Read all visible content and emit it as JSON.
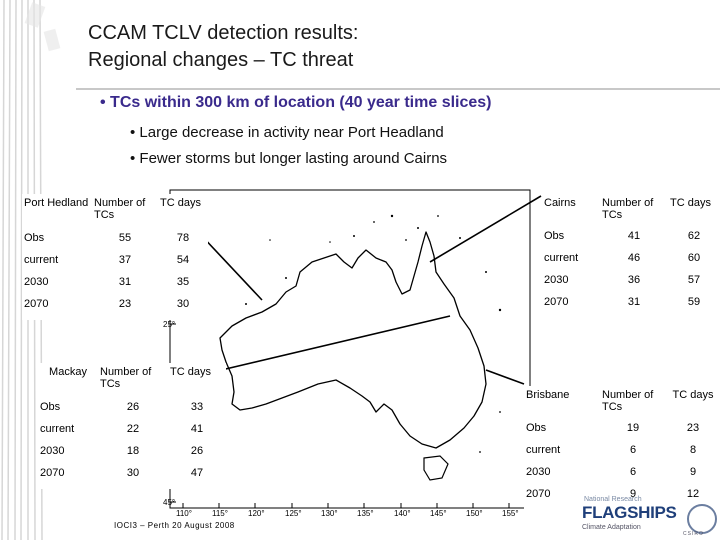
{
  "title": {
    "line1": "CCAM TCLV detection results:",
    "line2": "Regional changes – TC threat"
  },
  "bullets": {
    "main": "TCs within 300 km of location (40 year time slices)",
    "sub": [
      "Large decrease in activity near Port Headland",
      "Fewer storms but longer lasting around Cairns"
    ]
  },
  "map": {
    "lat_labels": [
      "25°",
      "45°"
    ],
    "lon_labels": [
      "110°",
      "115°",
      "120°",
      "125°",
      "130°",
      "135°",
      "140°",
      "145°",
      "150°",
      "155°"
    ]
  },
  "tables": {
    "port_hedland": {
      "headers": [
        "Port Hedland",
        "Number of TCs",
        "TC days"
      ],
      "rows": [
        [
          "Obs",
          "55",
          "78"
        ],
        [
          "current",
          "37",
          "54"
        ],
        [
          "2030",
          "31",
          "35"
        ],
        [
          "2070",
          "23",
          "30"
        ]
      ]
    },
    "mackay": {
      "headers": [
        "Mackay",
        "Number of TCs",
        "TC days"
      ],
      "rows": [
        [
          "Obs",
          "26",
          "33"
        ],
        [
          "current",
          "22",
          "41"
        ],
        [
          "2030",
          "18",
          "26"
        ],
        [
          "2070",
          "30",
          "47"
        ]
      ]
    },
    "cairns": {
      "headers": [
        "Cairns",
        "Number of TCs",
        "TC days"
      ],
      "rows": [
        [
          "Obs",
          "41",
          "62"
        ],
        [
          "current",
          "46",
          "60"
        ],
        [
          "2030",
          "36",
          "57"
        ],
        [
          "2070",
          "31",
          "59"
        ]
      ]
    },
    "brisbane": {
      "headers": [
        "Brisbane",
        "Number of TCs",
        "TC days"
      ],
      "rows": [
        [
          "Obs",
          "19",
          "23"
        ],
        [
          "current",
          "6",
          "8"
        ],
        [
          "2030",
          "6",
          "9"
        ],
        [
          "2070",
          "9",
          "12"
        ]
      ]
    }
  },
  "footer": "IOCI3 – Perth 20 August 2008",
  "logo": {
    "top": "National Research",
    "main": "FLAGSHIPS",
    "sub": "Climate Adaptation",
    "csiro": "CSIRO"
  },
  "colors": {
    "bullet": "#3a2a8c",
    "map_land": "#ffffff",
    "map_sea": "#ffffff"
  }
}
